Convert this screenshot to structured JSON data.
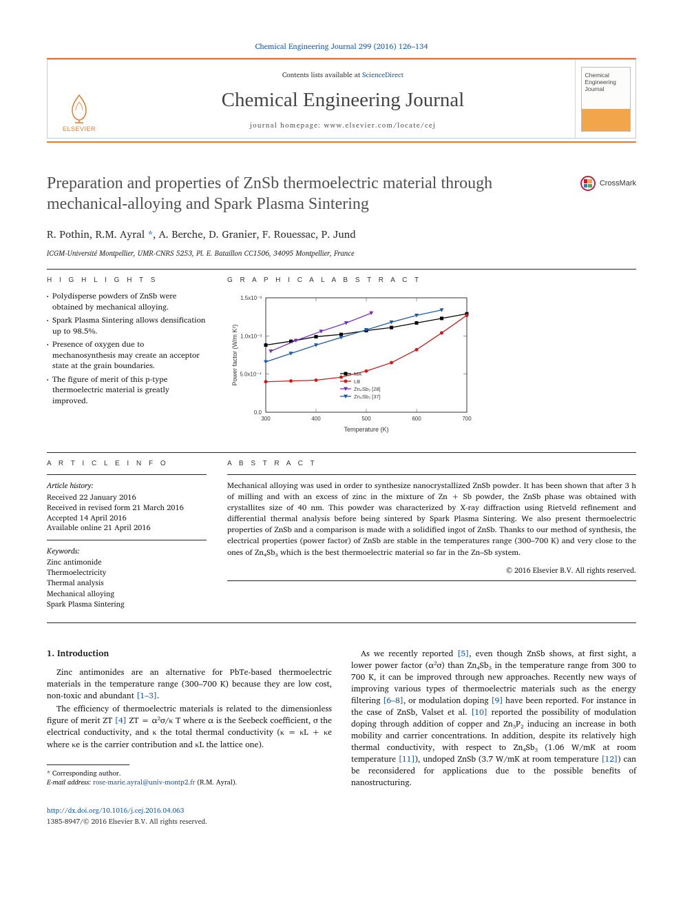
{
  "citation": "Chemical Engineering Journal 299 (2016) 126–134",
  "header": {
    "contents_prefix": "Contents lists available at ",
    "contents_link": "ScienceDirect",
    "journal_name": "Chemical Engineering Journal",
    "homepage_prefix": "journal homepage: ",
    "homepage": "www.elsevier.com/locate/cej",
    "publisher": "ELSEVIER",
    "cover_line1": "Chemical",
    "cover_line2": "Engineering",
    "cover_line3": "Journal"
  },
  "crossmark": "CrossMark",
  "title": "Preparation and properties of ZnSb thermoelectric material through mechanical-alloying and Spark Plasma Sintering",
  "authors": "R. Pothin, R.M. Ayral *, A. Berche, D. Granier, F. Rouessac, P. Jund",
  "affiliation": "ICGM-Université Montpellier, UMR-CNRS 5253, Pl. E. Bataillon CC1506, 34095 Montpellier, France",
  "highlights_head": "H I G H L I G H T S",
  "highlights": [
    "Polydisperse powders of ZnSb were obtained by mechanical alloying.",
    "Spark Plasma Sintering allows densification up to 98.5%.",
    "Presence of oxygen due to mechanosynthesis may create an acceptor state at the grain boundaries.",
    "The figure of merit of this p-type thermoelectric material is greatly improved."
  ],
  "graphabs_head": "G R A P H I C A L  A B S T R A C T",
  "chart": {
    "type": "line",
    "xlabel": "Temperature (K)",
    "ylabel": "Power factor (W/m K²)",
    "xlim": [
      300,
      700
    ],
    "ylim": [
      0.0,
      0.0015
    ],
    "xticks": [
      300,
      400,
      500,
      600,
      700
    ],
    "yticks": [
      0.0,
      0.0005,
      0.001,
      0.0015
    ],
    "ytick_labels": [
      "0.0",
      "5.0x10⁻⁴",
      "1.0x10⁻³",
      "1.5x10⁻³"
    ],
    "background_color": "#ffffff",
    "border_color": "#333333",
    "tick_fontsize": 8,
    "label_fontsize": 9,
    "legend_pos": "upper-left-inside",
    "series": [
      {
        "name": "MA",
        "color": "#000000",
        "marker": "square",
        "x": [
          300,
          350,
          400,
          450,
          500,
          550,
          600,
          650,
          700
        ],
        "y": [
          0.00088,
          0.00093,
          0.00099,
          0.00102,
          0.00107,
          0.00111,
          0.00117,
          0.00123,
          0.00129
        ]
      },
      {
        "name": "LB",
        "color": "#d11919",
        "marker": "circle",
        "x": [
          300,
          350,
          400,
          450,
          500,
          550,
          600,
          650,
          700
        ],
        "y": [
          0.0004,
          0.00041,
          0.00042,
          0.00046,
          0.00054,
          0.00065,
          0.00082,
          0.00104,
          0.00127
        ]
      },
      {
        "name": "Zn₄Sb₃ [28]",
        "color": "#782dbd",
        "marker": "triangle-down",
        "x": [
          310,
          360,
          410,
          460,
          510
        ],
        "y": [
          0.0008,
          0.00094,
          0.00106,
          0.00117,
          0.0013
        ]
      },
      {
        "name": "Zn₄Sb₃ [37]",
        "color": "#1a5aa8",
        "marker": "triangle-down",
        "x": [
          300,
          350,
          400,
          450,
          500,
          550,
          600,
          650
        ],
        "y": [
          0.00066,
          0.00077,
          0.00088,
          0.00098,
          0.00108,
          0.00118,
          0.00127,
          0.00134
        ]
      }
    ]
  },
  "article_info_head": "A R T I C L E  I N F O",
  "article_history_head": "Article history:",
  "article_history": [
    "Received 22 January 2016",
    "Received in revised form 21 March 2016",
    "Accepted 14 April 2016",
    "Available online 21 April 2016"
  ],
  "keywords_head": "Keywords:",
  "keywords": [
    "Zinc antimonide",
    "Thermoelectricity",
    "Thermal analysis",
    "Mechanical alloying",
    "Spark Plasma Sintering"
  ],
  "abstract_head": "A B S T R A C T",
  "abstract": "Mechanical alloying was used in order to synthesize nanocrystallized ZnSb powder. It has been shown that after 3 h of milling and with an excess of zinc in the mixture of Zn + Sb powder, the ZnSb phase was obtained with crystallites size of 40 nm. This powder was characterized by X-ray diffraction using Rietveld refinement and differential thermal analysis before being sintered by Spark Plasma Sintering. We also present thermoelectric properties of ZnSb and a comparison is made with a solidified ingot of ZnSb. Thanks to our method of synthesis, the electrical properties (power factor) of ZnSb are stable in the temperatures range (300–700 K) and very close to the ones of Zn₄Sb₃ which is the best thermoelectric material so far in the Zn–Sb system.",
  "copyright": "© 2016 Elsevier B.V. All rights reserved.",
  "intro_head": "1. Introduction",
  "intro_p1a": "Zinc antimonides are an alternative for PbTe-based thermoelectric materials in the temperature range (300–700 K) because they are low cost, non-toxic and abundant ",
  "intro_p1_ref": "[1–3]",
  "intro_p2a": "The efficiency of thermoelectric materials is related to the dimensionless figure of merit ZT ",
  "intro_p2_ref": "[4]",
  "intro_p2b": " ZT = α²σ/κ T where α is the Seebeck coefficient, σ the electrical conductivity, and κ the total thermal conductivity (κ = κL + κe where κe is the carrier contribution and κL the lattice one).",
  "intro_p3a": "As we recently reported ",
  "intro_p3_ref1": "[5]",
  "intro_p3b": ", even though ZnSb shows, at first sight, a lower power factor (α²σ) than Zn₄Sb₃ in the temperature range from 300 to 700 K, it can be improved through new approaches. Recently new ways of improving various types of thermoelectric materials such as the energy filtering ",
  "intro_p3_ref2": "[6–8]",
  "intro_p3c": ", or modulation doping ",
  "intro_p3_ref3": "[9]",
  "intro_p3d": " have been reported. For instance in the case of ZnSb, Valset et al. ",
  "intro_p3_ref4": "[10]",
  "intro_p3e": " reported the possibility of modulation doping through addition of copper and Zn₃P₂ inducing an increase in both mobility and carrier concentrations. In addition, despite its relatively high thermal conductivity, with respect to Zn₄Sb₃ (1.06 W/mK at room temperature ",
  "intro_p3_ref5": "[11]",
  "intro_p3f": "), undoped ZnSb (3.7 W/mK at room temperature ",
  "intro_p3_ref6": "[12]",
  "intro_p3g": ") can be reconsidered for applications due to the possible benefits of nanostructuring.",
  "footnote_star": "* Corresponding author.",
  "footnote_email_label": "E-mail address: ",
  "footnote_email": "rose-marie.ayral@univ-montp2.fr",
  "footnote_email_who": " (R.M. Ayral).",
  "doi": "http://dx.doi.org/10.1016/j.cej.2016.04.063",
  "doi_sub": "1385-8947/© 2016 Elsevier B.V. All rights reserved.",
  "colors": {
    "link": "#1a5aa8",
    "orange": "#e8792d",
    "text": "#1a1a1a",
    "title_gray": "#505050"
  }
}
